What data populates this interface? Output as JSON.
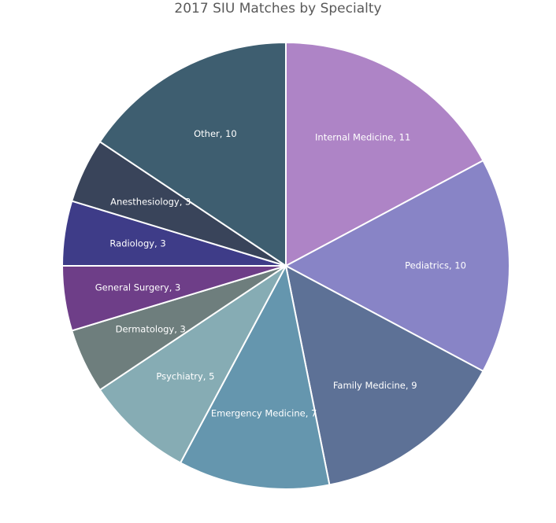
{
  "chart_data": {
    "type": "pie",
    "title": "2017 SIU Matches by Specialty",
    "start_angle_deg": 0,
    "direction": "clockwise",
    "legend": "none",
    "data_labels": "category-and-value-inside",
    "slices": [
      {
        "label": "Internal Medicine",
        "value": 11,
        "color": "#ae84c6",
        "display": "Internal Medicine, 11"
      },
      {
        "label": "Pediatrics",
        "value": 10,
        "color": "#8884c6",
        "display": "Pediatrics, 10"
      },
      {
        "label": "Family Medicine",
        "value": 9,
        "color": "#5d7196",
        "display": "Family Medicine, 9"
      },
      {
        "label": "Emergency Medicine",
        "value": 7,
        "color": "#6596ae",
        "display": "Emergency Medicine, 7"
      },
      {
        "label": "Psychiatry",
        "value": 5,
        "color": "#86acb4",
        "display": "Psychiatry, 5"
      },
      {
        "label": "Dermatology",
        "value": 3,
        "color": "#6e7e7d",
        "display": "Dermatology, 3"
      },
      {
        "label": "General Surgery",
        "value": 3,
        "color": "#6e3e88",
        "display": "General Surgery, 3"
      },
      {
        "label": "Radiology",
        "value": 3,
        "color": "#3e3c88",
        "display": "Radiology, 3"
      },
      {
        "label": "Anesthesiology",
        "value": 3,
        "color": "#39445a",
        "display": "Anesthesiology, 3"
      },
      {
        "label": "Other",
        "value": 10,
        "color": "#3e5e70",
        "display": "Other, 10"
      }
    ]
  }
}
